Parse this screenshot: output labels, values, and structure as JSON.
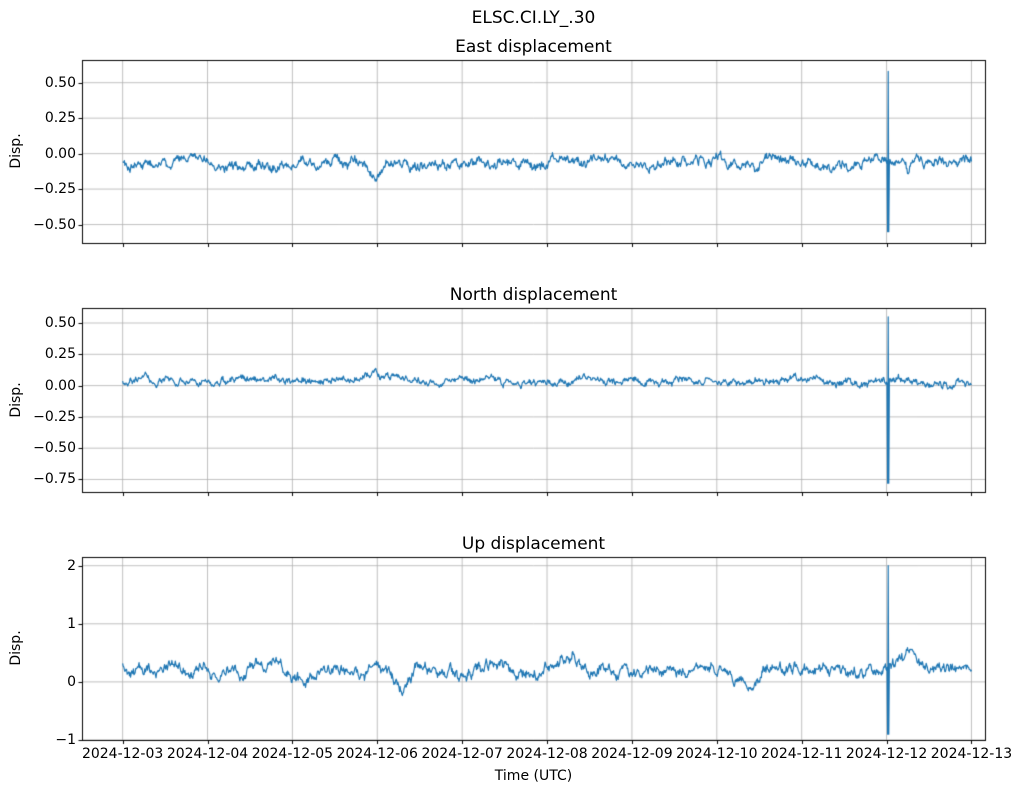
{
  "figure": {
    "title": "ELSC.CI.LY_.30",
    "xlabel": "Time (UTC)",
    "background_color": "#ffffff",
    "line_color": "#1f77b4",
    "grid_color": "#b0b0b0",
    "spine_color": "#000000",
    "x_tick_labels": [
      "2024-12-03",
      "2024-12-04",
      "2024-12-05",
      "2024-12-06",
      "2024-12-07",
      "2024-12-08",
      "2024-12-09",
      "2024-12-10",
      "2024-12-11",
      "2024-12-12",
      "2024-12-13"
    ]
  },
  "chart_data": [
    {
      "type": "line",
      "title": "East displacement",
      "ylabel": "Disp.",
      "x_start": "2024-12-03",
      "x_end": "2024-12-13",
      "grid": true,
      "legend": "none",
      "ylim": [
        -0.63,
        0.66
      ],
      "ytick_values": [
        0.5,
        0.25,
        0.0,
        -0.25,
        -0.5
      ],
      "ytick_labels": [
        "0.50",
        "0.25",
        "0.00",
        "−0.25",
        "−0.50"
      ],
      "baseline": -0.06,
      "noise_amp": 0.05,
      "seed": 101,
      "spike": {
        "time": "2024-12-12",
        "t_frac": 0.902,
        "max": 0.58,
        "min": -0.55
      },
      "anchors": [
        [
          0.0,
          -0.05
        ],
        [
          0.03,
          -0.07
        ],
        [
          0.06,
          -0.06
        ],
        [
          0.085,
          -0.01
        ],
        [
          0.1,
          -0.06
        ],
        [
          0.13,
          -0.09
        ],
        [
          0.16,
          -0.06
        ],
        [
          0.19,
          -0.09
        ],
        [
          0.22,
          -0.06
        ],
        [
          0.25,
          -0.08
        ],
        [
          0.28,
          -0.06
        ],
        [
          0.295,
          -0.16
        ],
        [
          0.31,
          -0.07
        ],
        [
          0.345,
          -0.1
        ],
        [
          0.37,
          -0.06
        ],
        [
          0.4,
          -0.11
        ],
        [
          0.43,
          -0.06
        ],
        [
          0.46,
          -0.05
        ],
        [
          0.49,
          -0.08
        ],
        [
          0.52,
          -0.05
        ],
        [
          0.55,
          -0.07
        ],
        [
          0.58,
          -0.05
        ],
        [
          0.61,
          -0.08
        ],
        [
          0.64,
          -0.05
        ],
        [
          0.67,
          -0.06
        ],
        [
          0.7,
          -0.05
        ],
        [
          0.72,
          -0.09
        ],
        [
          0.745,
          -0.11
        ],
        [
          0.765,
          -0.03
        ],
        [
          0.78,
          -0.07
        ],
        [
          0.81,
          -0.05
        ],
        [
          0.83,
          -0.08
        ],
        [
          0.86,
          -0.06
        ],
        [
          0.88,
          -0.03
        ],
        [
          0.895,
          -0.06
        ],
        [
          0.91,
          -0.05
        ],
        [
          0.925,
          -0.12
        ],
        [
          0.94,
          -0.07
        ],
        [
          0.96,
          -0.05
        ],
        [
          0.98,
          -0.06
        ],
        [
          1.0,
          -0.06
        ]
      ]
    },
    {
      "type": "line",
      "title": "North displacement",
      "ylabel": "Disp.",
      "x_start": "2024-12-03",
      "x_end": "2024-12-13",
      "grid": true,
      "legend": "none",
      "ylim": [
        -0.85,
        0.62
      ],
      "ytick_values": [
        0.5,
        0.25,
        0.0,
        -0.25,
        -0.5,
        -0.75
      ],
      "ytick_labels": [
        "0.50",
        "0.25",
        "0.00",
        "−0.25",
        "−0.50",
        "−0.75"
      ],
      "baseline": 0.03,
      "noise_amp": 0.04,
      "seed": 202,
      "spike": {
        "time": "2024-12-12",
        "t_frac": 0.902,
        "max": 0.55,
        "min": -0.78
      },
      "anchors": [
        [
          0.0,
          0.04
        ],
        [
          0.03,
          0.05
        ],
        [
          0.06,
          0.02
        ],
        [
          0.09,
          0.04
        ],
        [
          0.12,
          0.03
        ],
        [
          0.15,
          0.05
        ],
        [
          0.18,
          0.04
        ],
        [
          0.21,
          0.05
        ],
        [
          0.24,
          0.04
        ],
        [
          0.27,
          0.05
        ],
        [
          0.295,
          0.09
        ],
        [
          0.315,
          0.06
        ],
        [
          0.34,
          0.04
        ],
        [
          0.37,
          0.05
        ],
        [
          0.4,
          0.04
        ],
        [
          0.43,
          0.06
        ],
        [
          0.46,
          0.04
        ],
        [
          0.49,
          0.02
        ],
        [
          0.52,
          0.04
        ],
        [
          0.55,
          0.07
        ],
        [
          0.58,
          0.04
        ],
        [
          0.61,
          0.05
        ],
        [
          0.64,
          0.04
        ],
        [
          0.67,
          0.05
        ],
        [
          0.7,
          0.04
        ],
        [
          0.73,
          0.05
        ],
        [
          0.76,
          0.03
        ],
        [
          0.79,
          0.05
        ],
        [
          0.82,
          0.04
        ],
        [
          0.85,
          0.03
        ],
        [
          0.88,
          0.04
        ],
        [
          0.91,
          0.04
        ],
        [
          0.94,
          0.02
        ],
        [
          0.97,
          0.02
        ],
        [
          1.0,
          0.01
        ]
      ]
    },
    {
      "type": "line",
      "title": "Up displacement",
      "ylabel": "Disp.",
      "x_start": "2024-12-03",
      "x_end": "2024-12-13",
      "grid": true,
      "legend": "none",
      "ylim": [
        -1.0,
        2.15
      ],
      "ytick_values": [
        2,
        1,
        0,
        -1
      ],
      "ytick_labels": [
        "2",
        "1",
        "0",
        "−1"
      ],
      "baseline": 0.2,
      "noise_amp": 0.13,
      "seed": 303,
      "spike": {
        "time": "2024-12-12",
        "t_frac": 0.902,
        "max": 2.0,
        "min": -0.9
      },
      "anchors": [
        [
          0.0,
          0.25
        ],
        [
          0.02,
          0.15
        ],
        [
          0.05,
          0.22
        ],
        [
          0.08,
          0.18
        ],
        [
          0.1,
          0.28
        ],
        [
          0.12,
          0.15
        ],
        [
          0.145,
          0.05
        ],
        [
          0.16,
          0.25
        ],
        [
          0.18,
          0.33
        ],
        [
          0.2,
          0.12
        ],
        [
          0.215,
          -0.05
        ],
        [
          0.23,
          0.2
        ],
        [
          0.26,
          0.22
        ],
        [
          0.285,
          0.18
        ],
        [
          0.3,
          0.3
        ],
        [
          0.315,
          0.1
        ],
        [
          0.33,
          -0.1
        ],
        [
          0.345,
          0.2
        ],
        [
          0.37,
          0.22
        ],
        [
          0.4,
          0.15
        ],
        [
          0.43,
          0.28
        ],
        [
          0.46,
          0.2
        ],
        [
          0.49,
          0.25
        ],
        [
          0.51,
          0.3
        ],
        [
          0.53,
          0.42
        ],
        [
          0.55,
          0.18
        ],
        [
          0.58,
          0.22
        ],
        [
          0.61,
          0.18
        ],
        [
          0.64,
          0.25
        ],
        [
          0.67,
          0.2
        ],
        [
          0.7,
          0.25
        ],
        [
          0.72,
          0.1
        ],
        [
          0.74,
          -0.05
        ],
        [
          0.76,
          0.22
        ],
        [
          0.79,
          0.25
        ],
        [
          0.81,
          0.12
        ],
        [
          0.83,
          0.22
        ],
        [
          0.86,
          0.2
        ],
        [
          0.88,
          0.15
        ],
        [
          0.9,
          0.2
        ],
        [
          0.915,
          0.3
        ],
        [
          0.93,
          0.45
        ],
        [
          0.945,
          0.25
        ],
        [
          0.96,
          0.2
        ],
        [
          0.98,
          0.22
        ],
        [
          1.0,
          0.25
        ]
      ]
    }
  ]
}
